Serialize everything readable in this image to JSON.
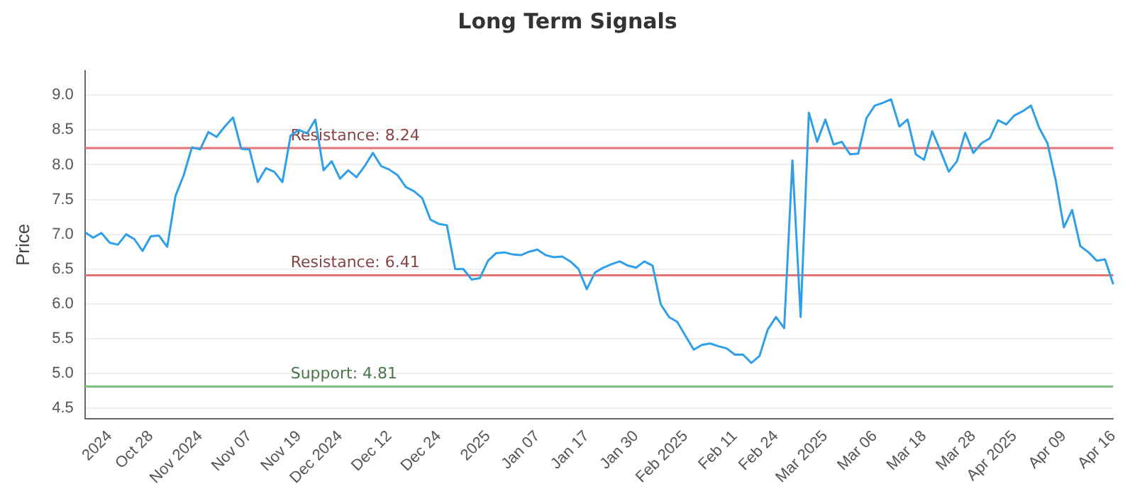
{
  "chart_data": {
    "type": "line",
    "title": "Long Term Signals",
    "ylabel": "Price",
    "categories": [
      null,
      null,
      null,
      "2024",
      null,
      null,
      null,
      null,
      "Oct 28",
      null,
      null,
      null,
      null,
      null,
      "Nov 2024",
      null,
      null,
      null,
      null,
      null,
      "Nov 07",
      null,
      null,
      null,
      null,
      null,
      "Nov 19",
      null,
      null,
      null,
      null,
      "Dec 2024",
      null,
      null,
      null,
      null,
      null,
      "Dec 12",
      null,
      null,
      null,
      null,
      null,
      "Dec 24",
      null,
      null,
      null,
      null,
      null,
      "2025",
      null,
      null,
      null,
      null,
      null,
      "Jan 07",
      null,
      null,
      null,
      null,
      null,
      "Jan 17",
      null,
      null,
      null,
      null,
      null,
      "Jan 30",
      null,
      null,
      null,
      null,
      null,
      "Feb 2025",
      null,
      null,
      null,
      null,
      null,
      "Feb 11",
      null,
      null,
      null,
      null,
      "Feb 24",
      null,
      null,
      null,
      null,
      null,
      "Mar 2025",
      null,
      null,
      null,
      null,
      null,
      "Mar 06",
      null,
      null,
      null,
      null,
      null,
      "Mar 18",
      null,
      null,
      null,
      null,
      null,
      "Mar 28",
      null,
      null,
      null,
      null,
      "Apr 2025",
      null,
      null,
      null,
      null,
      null,
      "Apr 09",
      null,
      null,
      null,
      null,
      null,
      "Apr 16"
    ],
    "series": [
      {
        "color": "#2f9fe8",
        "values": [
          7.03,
          6.95,
          7.02,
          6.88,
          6.85,
          7.0,
          6.93,
          6.76,
          6.97,
          6.98,
          6.82,
          7.55,
          7.85,
          8.25,
          8.22,
          8.47,
          8.4,
          8.55,
          8.68,
          8.23,
          8.22,
          7.75,
          7.95,
          7.9,
          7.75,
          8.42,
          8.5,
          8.45,
          8.65,
          7.92,
          8.05,
          7.8,
          7.92,
          7.82,
          7.98,
          8.17,
          7.98,
          7.93,
          7.85,
          7.68,
          7.62,
          7.52,
          7.21,
          7.15,
          7.13,
          6.5,
          6.5,
          6.35,
          6.37,
          6.62,
          6.73,
          6.74,
          6.71,
          6.7,
          6.75,
          6.78,
          6.7,
          6.67,
          6.68,
          6.61,
          6.5,
          6.21,
          6.45,
          6.52,
          6.57,
          6.61,
          6.55,
          6.52,
          6.61,
          6.55,
          5.99,
          5.81,
          5.74,
          5.54,
          5.34,
          5.41,
          5.43,
          5.39,
          5.36,
          5.27,
          5.27,
          5.15,
          5.25,
          5.63,
          5.81,
          5.65,
          8.06,
          5.81,
          8.75,
          8.33,
          8.65,
          8.29,
          8.33,
          8.15,
          8.16,
          8.67,
          8.85,
          8.89,
          8.94,
          8.55,
          8.65,
          8.15,
          8.07,
          8.48,
          8.2,
          7.9,
          8.05,
          8.46,
          8.17,
          8.31,
          8.38,
          8.64,
          8.58,
          8.71,
          8.77,
          8.85,
          8.53,
          8.31,
          7.78,
          7.1,
          7.35,
          6.83,
          6.74,
          6.62,
          6.64,
          6.28
        ]
      }
    ],
    "ylim": [
      4.35,
      9.35
    ],
    "yticks": [
      4.5,
      {
        "value": 5,
        "label": "5.0"
      },
      5.5,
      {
        "value": 6,
        "label": "6.0"
      },
      6.5,
      {
        "value": 7,
        "label": "7.0"
      },
      7.5,
      {
        "value": 8,
        "label": "8.0"
      },
      8.5,
      {
        "value": 9,
        "label": "9.0"
      }
    ],
    "grid": "y",
    "legend": false,
    "marker": "none",
    "line_style": "solid",
    "ref_lines": [
      {
        "axis": "y",
        "value": 8.24,
        "label": "Resistance: 8.24",
        "color": "#e57373"
      },
      {
        "axis": "y",
        "value": 6.41,
        "label": "Resistance: 6.41",
        "color": "#e57373"
      },
      {
        "axis": "y",
        "value": 4.81,
        "label": "Support: 4.81",
        "color": "#7cc47c"
      }
    ]
  }
}
